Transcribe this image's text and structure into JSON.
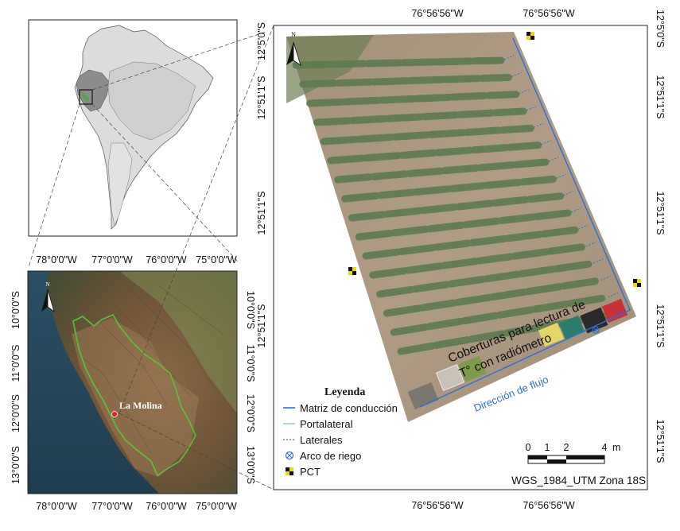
{
  "inset": {
    "locality_label": "La Molina"
  },
  "regional_map": {
    "top_lon_labels": [
      "78°0'0\"W",
      "77°0'0\"W",
      "76°0'0\"W",
      "75°0'0\"W"
    ],
    "bottom_lon_labels": [
      "78°0'0\"W",
      "77°0'0\"W",
      "76°0'0\"W",
      "75°0'0\"W"
    ],
    "left_lat_labels": [
      "10°0'0\"S",
      "11°0'0\"S",
      "12°0'0\"S",
      "13°0'0\"S"
    ],
    "right_lat_labels": [
      "10°0'0\"S",
      "11°0'0\"S",
      "12°0'0\"S",
      "13°0'0\"S"
    ],
    "place_label": "La Molina",
    "north_label": "N"
  },
  "field_map": {
    "top_lon_labels": [
      "76°56'56\"W",
      "76°56'56\"W"
    ],
    "bottom_lon_labels": [
      "76°56'56\"W",
      "76°56'56\"W"
    ],
    "left_lat_labels": [
      "12°5'0\"S",
      "12°51'1\"S",
      "12°51'1\"S",
      "12°51'1\"S"
    ],
    "right_lat_labels": [
      "12°5'0\"S",
      "12°51'1\"S",
      "12°51'1\"S",
      "12°51'1\"S",
      "12°51'1\"S"
    ],
    "north_label": "N",
    "covers_label_line1": "Coberturas para lectura de",
    "covers_label_line2": "T° con radiómetro",
    "flow_label": "Dirección de flujo",
    "legend": {
      "title": "Leyenda",
      "items": [
        "Matriz de conducción",
        "Portalateral",
        "Laterales",
        "Arco de riego",
        "PCT"
      ]
    },
    "scale": {
      "ticks": [
        "0",
        "1",
        "2",
        "4"
      ],
      "unit": "m"
    },
    "crs_label": "WGS_1984_UTM Zona 18S"
  },
  "colors": {
    "conduction_line": "#2b6fd6",
    "portalateral_line": "#6fb3e0",
    "laterales_line": "#2b6fd6",
    "study_area_outline": "#2e8b2e",
    "location_point": "#e02020",
    "inset_highlight": "#8c8c8c"
  }
}
